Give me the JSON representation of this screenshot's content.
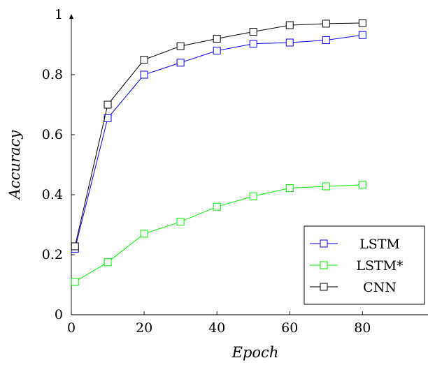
{
  "chart_data": {
    "type": "line",
    "xlabel": "Epoch",
    "ylabel": "Accuracy",
    "xlim": [
      0,
      98
    ],
    "ylim": [
      0,
      1
    ],
    "x_ticks": [
      0,
      20,
      40,
      60,
      80
    ],
    "y_ticks": [
      0,
      0.2,
      0.4,
      0.6,
      0.8,
      1
    ],
    "x_tick_labels": [
      "0",
      "20",
      "40",
      "60",
      "80"
    ],
    "y_tick_labels": [
      "0",
      "0.2",
      "0.4",
      "0.6",
      "0.8",
      "1"
    ],
    "grid": false,
    "legend_position": "bottom-right",
    "marker": "square",
    "series": [
      {
        "name": "LSTM",
        "color": "#0000ff",
        "x": [
          1,
          10,
          20,
          30,
          40,
          50,
          60,
          70,
          80
        ],
        "y": [
          0.22,
          0.655,
          0.8,
          0.84,
          0.88,
          0.903,
          0.907,
          0.915,
          0.932
        ]
      },
      {
        "name": "LSTM*",
        "color": "#00ee00",
        "x": [
          1,
          10,
          20,
          30,
          40,
          50,
          60,
          70,
          80
        ],
        "y": [
          0.11,
          0.175,
          0.27,
          0.31,
          0.36,
          0.395,
          0.422,
          0.428,
          0.433
        ]
      },
      {
        "name": "CNN",
        "color": "#000000",
        "x": [
          1,
          10,
          20,
          30,
          40,
          50,
          60,
          70,
          80
        ],
        "y": [
          0.228,
          0.7,
          0.85,
          0.895,
          0.92,
          0.943,
          0.965,
          0.97,
          0.972
        ]
      }
    ]
  }
}
